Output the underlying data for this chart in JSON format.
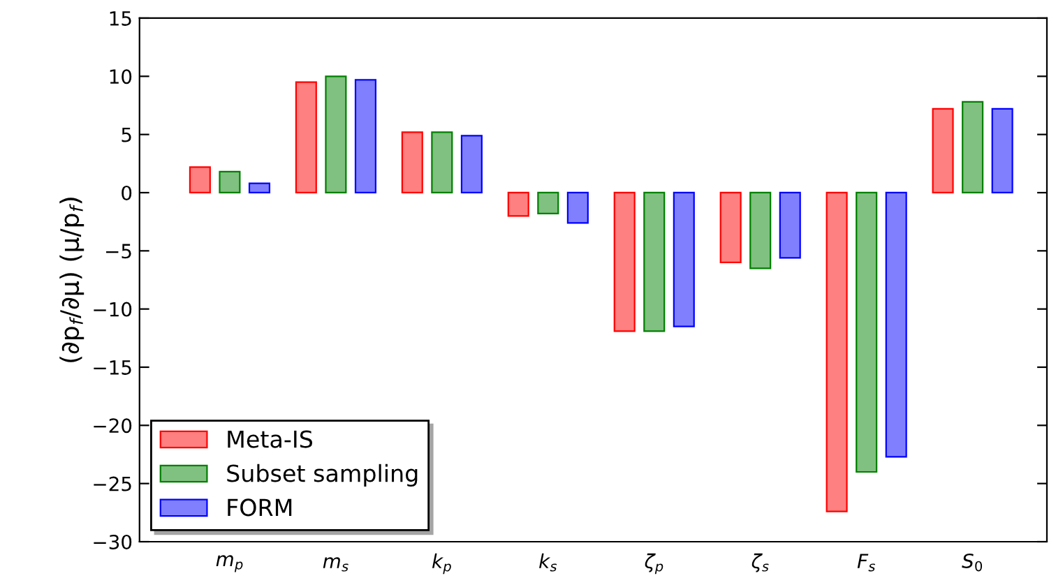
{
  "chart_data": {
    "type": "bar",
    "ylabel": "(∂p$_{f}$/∂μ) (μ/p$_{f}$)",
    "categories": [
      "m$_{p}$",
      "m$_{s}$",
      "k$_{p}$",
      "k$_{s}$",
      "ζ$_{p}$",
      "ζ$_{s}$",
      "F$_{s}$",
      "S$_{0}$"
    ],
    "series": [
      {
        "name": "Meta-IS",
        "color": "#ff8080",
        "values": [
          2.2,
          9.5,
          5.2,
          -2.0,
          -11.9,
          -6.0,
          -27.4,
          7.2
        ]
      },
      {
        "name": "Subset sampling",
        "color": "#80c080",
        "values": [
          1.8,
          10.0,
          5.2,
          -1.8,
          -11.9,
          -6.5,
          -24.0,
          7.8
        ]
      },
      {
        "name": "FORM",
        "color": "#8080ff",
        "values": [
          0.8,
          9.7,
          4.9,
          -2.6,
          -11.5,
          -5.6,
          -22.7,
          7.2
        ]
      }
    ],
    "ylim": [
      -30,
      15
    ],
    "yticks": [
      {
        "value": -30,
        "label": "−30"
      },
      {
        "value": -25,
        "label": "−25"
      },
      {
        "value": -20,
        "label": "−20"
      },
      {
        "value": -15,
        "label": "−15"
      },
      {
        "value": -10,
        "label": "−10"
      },
      {
        "value": -5,
        "label": "−5"
      },
      0,
      5,
      10,
      15
    ],
    "legend": "bottom left",
    "grid": false
  }
}
